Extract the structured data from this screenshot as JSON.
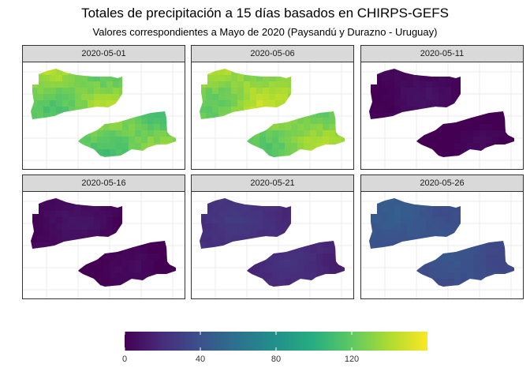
{
  "title": "Totales de precipitación a 15 días basados en CHIRPS-GEFS",
  "subtitle": "Valores correspondientes a Mayo de 2020 (Paysandú y Durazno - Uruguay)",
  "panels": [
    {
      "date": "2020-05-01",
      "mean": 128,
      "region": "Paysandú y Durazno"
    },
    {
      "date": "2020-05-06",
      "mean": 133,
      "region": "Paysandú y Durazno"
    },
    {
      "date": "2020-05-11",
      "mean": 3,
      "region": "Paysandú y Durazno"
    },
    {
      "date": "2020-05-16",
      "mean": 4,
      "region": "Paysandú y Durazno"
    },
    {
      "date": "2020-05-21",
      "mean": 22,
      "region": "Paysandú y Durazno"
    },
    {
      "date": "2020-05-26",
      "mean": 42,
      "region": "Paysandú y Durazno"
    }
  ],
  "legend": {
    "min": 0,
    "max": 160,
    "ticks": [
      "0",
      "40",
      "80",
      "120"
    ],
    "colormap": "viridis"
  },
  "colors": {
    "strip_bg": "#d9d9d9",
    "grid": "#ebebeb",
    "border": "#333333"
  }
}
